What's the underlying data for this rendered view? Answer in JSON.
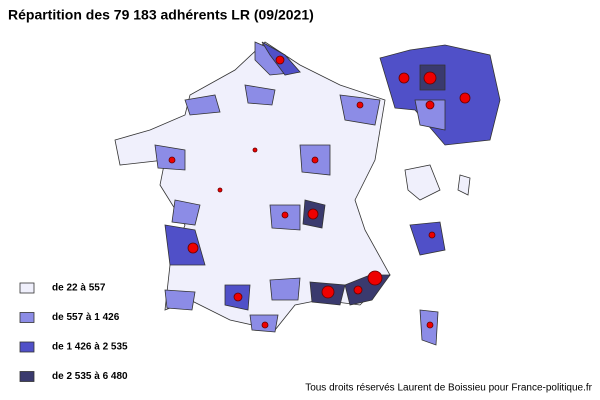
{
  "title": "Répartition des 79 183 adhérents LR (09/2021)",
  "legend": [
    {
      "label": "de 22 à 557",
      "color": "#f0f0fc"
    },
    {
      "label": "de 557 à 1 426",
      "color": "#8c8ce6"
    },
    {
      "label": "de 1 426 à 2 535",
      "color": "#5050c8"
    },
    {
      "label": "de 2 535 à 6 480",
      "color": "#3a3a6e"
    }
  ],
  "credit": "Tous droits réservés Laurent de Boissieu pour France-politique.fr"
}
